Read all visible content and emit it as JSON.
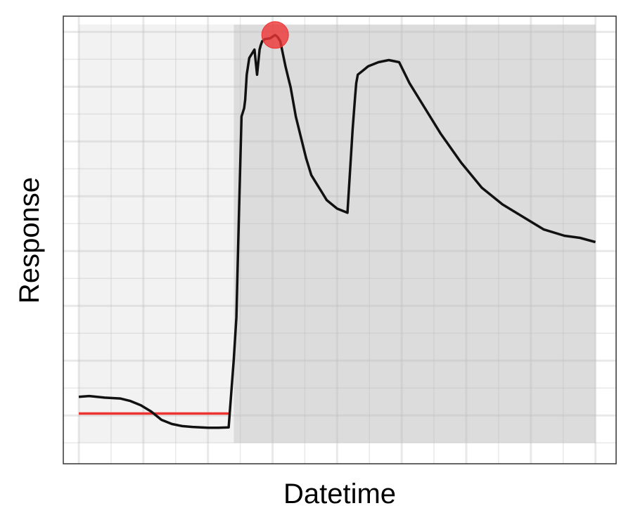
{
  "chart_data": {
    "type": "line",
    "xlabel": "Datetime",
    "ylabel": "Response",
    "x_ticks_labeled": false,
    "y_ticks_labeled": false,
    "grid": true,
    "xlim": [
      -0.03,
      1.04
    ],
    "ylim": [
      -0.05,
      1.02
    ],
    "regions": [
      {
        "name": "",
        "x_start": 0.0,
        "x_end": 0.3,
        "shade": "#f2f2f2"
      },
      {
        "name": "",
        "x_start": 0.3,
        "x_end": 1.0,
        "shade": "#dcdcdc"
      }
    ],
    "baseline": {
      "x_start": 0.0,
      "x_end": 0.29,
      "y": 0.07,
      "color": "#ee3333"
    },
    "peak": {
      "x": 0.38,
      "y": 0.975,
      "color": "#ee3333"
    },
    "series": [
      {
        "name": "",
        "color": "#111111",
        "x": [
          0.0,
          0.02,
          0.05,
          0.08,
          0.1,
          0.12,
          0.14,
          0.16,
          0.18,
          0.2,
          0.22,
          0.25,
          0.27,
          0.29,
          0.3,
          0.305,
          0.31,
          0.315,
          0.32,
          0.322,
          0.325,
          0.33,
          0.335,
          0.34,
          0.345,
          0.35,
          0.352,
          0.355,
          0.36,
          0.37,
          0.38,
          0.385,
          0.39,
          0.4,
          0.405,
          0.41,
          0.42,
          0.43,
          0.44,
          0.45,
          0.46,
          0.47,
          0.48,
          0.5,
          0.52,
          0.53,
          0.535,
          0.537,
          0.54,
          0.55,
          0.56,
          0.58,
          0.6,
          0.62,
          0.64,
          0.67,
          0.7,
          0.74,
          0.78,
          0.82,
          0.86,
          0.9,
          0.94,
          0.97,
          1.0
        ],
        "y": [
          0.11,
          0.112,
          0.108,
          0.106,
          0.1,
          0.09,
          0.075,
          0.055,
          0.045,
          0.04,
          0.038,
          0.036,
          0.036,
          0.037,
          0.2,
          0.3,
          0.55,
          0.78,
          0.8,
          0.82,
          0.88,
          0.92,
          0.93,
          0.94,
          0.88,
          0.94,
          0.95,
          0.96,
          0.965,
          0.967,
          0.975,
          0.97,
          0.96,
          0.9,
          0.875,
          0.85,
          0.78,
          0.73,
          0.68,
          0.64,
          0.62,
          0.6,
          0.58,
          0.56,
          0.55,
          0.75,
          0.83,
          0.86,
          0.88,
          0.89,
          0.9,
          0.91,
          0.915,
          0.91,
          0.86,
          0.8,
          0.74,
          0.67,
          0.61,
          0.57,
          0.54,
          0.51,
          0.495,
          0.49,
          0.48
        ]
      }
    ]
  }
}
